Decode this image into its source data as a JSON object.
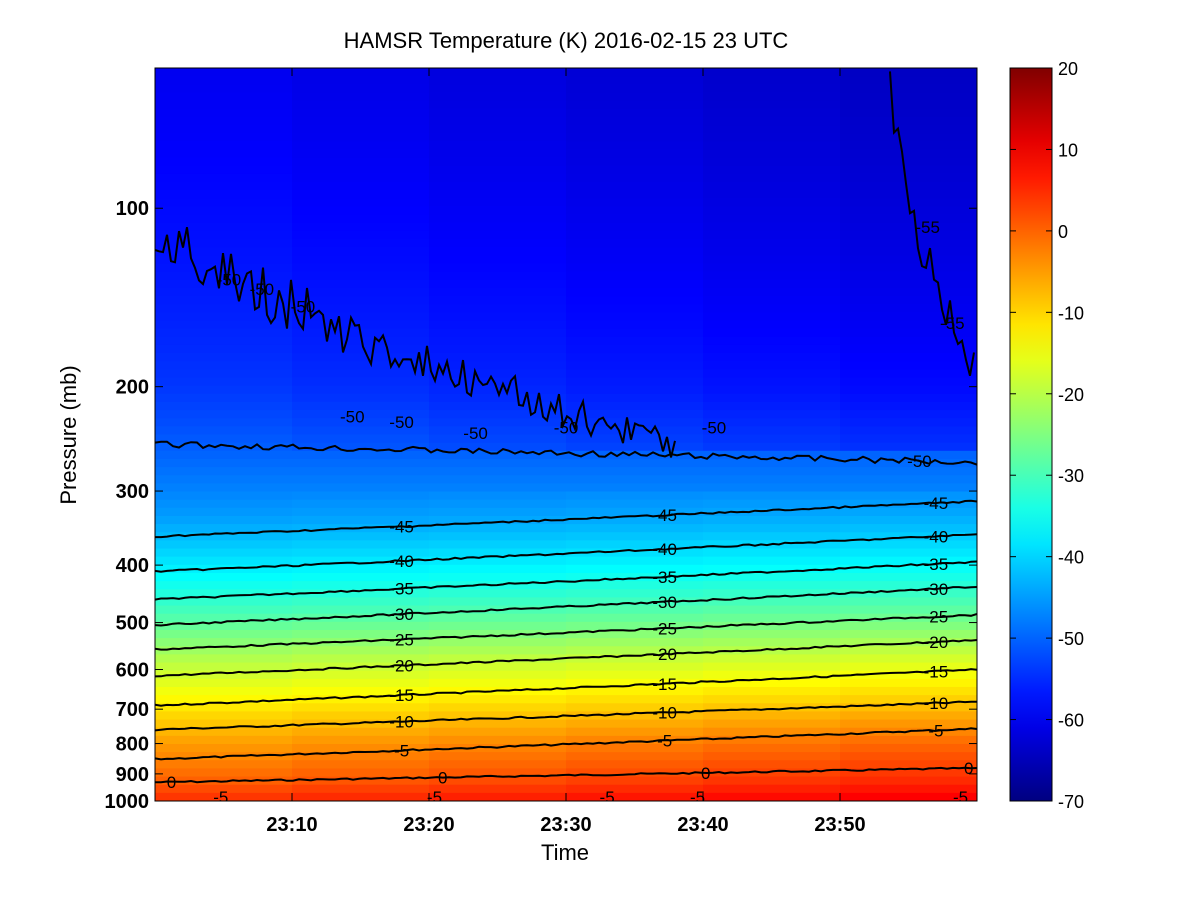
{
  "chart_data": {
    "type": "heatmap",
    "title": "HAMSR  Temperature (K) 2016-02-15 23 UTC",
    "xlabel": "Time",
    "ylabel": "Pressure (mb)",
    "y_scale": "log",
    "y_reversed": true,
    "xlim": [
      "23:00",
      "23:60"
    ],
    "ylim": [
      1000,
      58
    ],
    "x_ticks": [
      "23:10",
      "23:20",
      "23:30",
      "23:40",
      "23:50"
    ],
    "y_ticks": [
      {
        "value": 100,
        "label": "100"
      },
      {
        "value": 200,
        "label": "200"
      },
      {
        "value": 300,
        "label": "300"
      },
      {
        "value": 400,
        "label": "400"
      },
      {
        "value": 500,
        "label": "500"
      },
      {
        "value": 600,
        "label": "600"
      },
      {
        "value": 700,
        "label": "700"
      },
      {
        "value": 800,
        "label": "800"
      },
      {
        "value": 900,
        "label": "900"
      },
      {
        "value": 1000,
        "label": "1000"
      }
    ],
    "colorbar": {
      "range": [
        -70,
        20
      ],
      "colormap": "jet",
      "ticks": [
        20,
        10,
        0,
        -10,
        -20,
        -30,
        -40,
        -50,
        -60,
        -70
      ],
      "tick_labels": [
        "20",
        "10",
        "0",
        "-10",
        "-20",
        "-30",
        "-40",
        "-50",
        "-60",
        "-70"
      ]
    },
    "contour_levels": [
      {
        "level": 0,
        "label": "0",
        "p_start": 930,
        "p_end": 880
      },
      {
        "level": -5,
        "label": "-5",
        "p_start": 850,
        "p_end": 755
      },
      {
        "level": -10,
        "label": "-10",
        "p_start": 758,
        "p_end": 680
      },
      {
        "level": -15,
        "label": "-15",
        "p_start": 690,
        "p_end": 600
      },
      {
        "level": -20,
        "label": "-20",
        "p_start": 615,
        "p_end": 535
      },
      {
        "level": -25,
        "label": "-25",
        "p_start": 555,
        "p_end": 485
      },
      {
        "level": -30,
        "label": "-30",
        "p_start": 505,
        "p_end": 435
      },
      {
        "level": -35,
        "label": "-35",
        "p_start": 457,
        "p_end": 395
      },
      {
        "level": -40,
        "label": "-40",
        "p_start": 410,
        "p_end": 355
      },
      {
        "level": -45,
        "label": "-45",
        "p_start": 358,
        "p_end": 312
      },
      {
        "level": -50,
        "label": "-50",
        "p_start": 250,
        "p_end": 268
      }
    ],
    "upper_contour_labels": [
      "-50",
      "-50",
      "-50",
      "-50",
      "-50",
      "-50",
      "-50",
      "-50",
      "-55",
      "-55"
    ],
    "bottom_contour_labels": [
      "-5",
      "-5",
      "-5",
      "-5",
      "-5"
    ],
    "colors": {
      "background": "#ffffff",
      "contour": "#000000",
      "text": "#000000"
    }
  }
}
